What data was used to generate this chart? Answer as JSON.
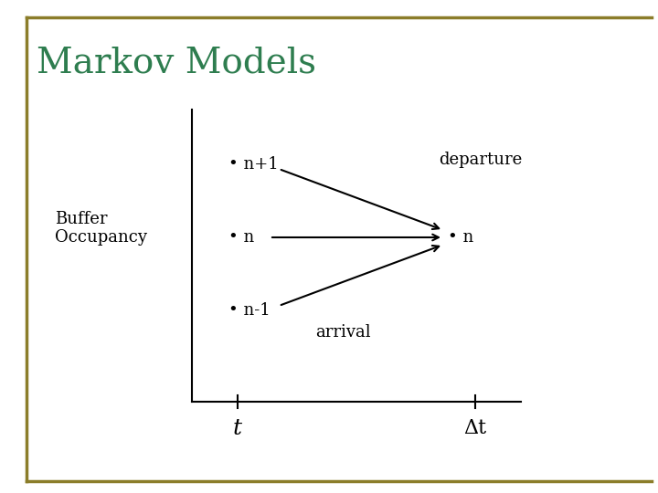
{
  "title": "Markov Models",
  "title_color": "#2e7d4f",
  "title_fontsize": 28,
  "bg_color": "#ffffff",
  "border_color": "#8B7D2A",
  "label_buffer": "Buffer\nOccupancy",
  "label_t": "t",
  "label_dt": "Δt",
  "label_departure": "departure",
  "label_arrival": "arrival",
  "label_n1_left": "• n+1",
  "label_n_left": "• n",
  "label_nm1_left": "• n-1",
  "label_n_right": "• n",
  "fontsize_content": 13,
  "fontsize_axis_label": 16,
  "arrow_lw": 1.5
}
